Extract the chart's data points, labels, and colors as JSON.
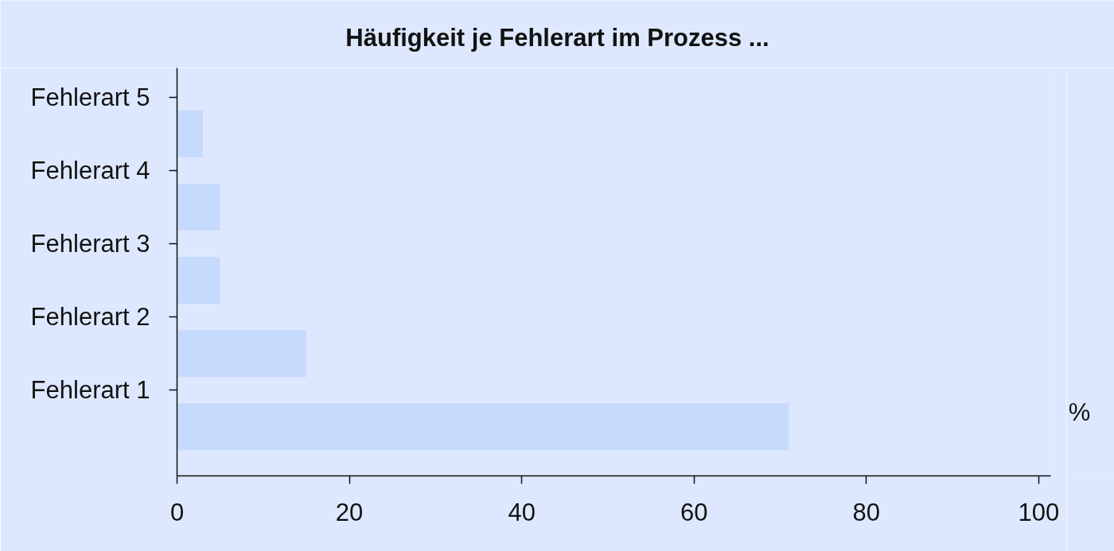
{
  "chart_data": {
    "type": "bar",
    "orientation": "horizontal",
    "title": "Häufigkeit je Fehlerart im Prozess ...",
    "xlabel": "%",
    "categories": [
      "Fehlerart 5",
      "Fehlerart 4",
      "Fehlerart 3",
      "Fehlerart 2",
      "Fehlerart 1"
    ],
    "values": [
      3,
      5,
      5,
      15,
      71
    ],
    "color": "#c6dafd",
    "xlim": [
      0,
      101.4
    ],
    "xticks": [
      0,
      20,
      40,
      60,
      80,
      100
    ]
  }
}
